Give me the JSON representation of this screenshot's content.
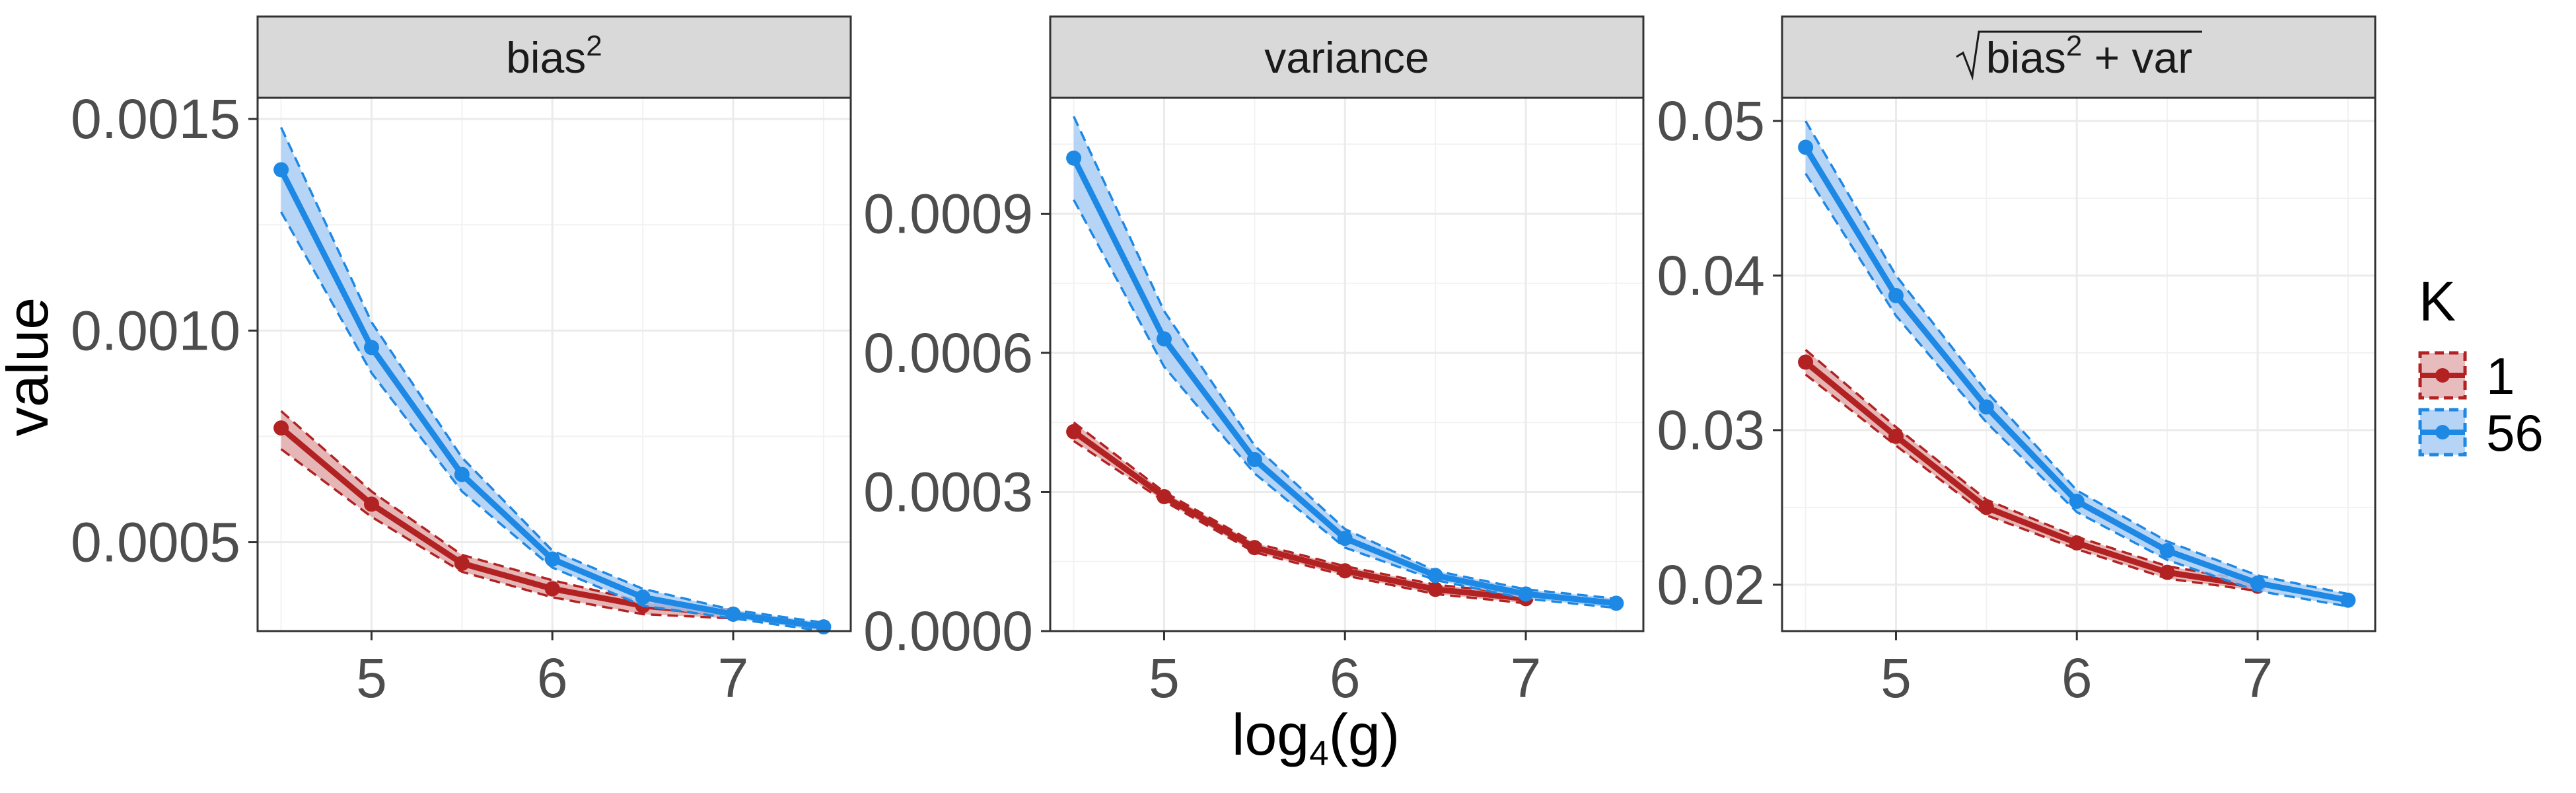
{
  "chart_data": {
    "type": "line",
    "xlabel": {
      "base": "log",
      "sub": "4",
      "rest": "(g)"
    },
    "ylabel": "value",
    "legend": {
      "title": "K",
      "position": "right",
      "entries": [
        "1",
        "56"
      ]
    },
    "colors": {
      "1": "#b22222",
      "56": "#1e88e5",
      "band1": "#d98f8f",
      "band56": "#a9ccf3"
    },
    "grid": true,
    "panels": [
      {
        "strip": {
          "type": "sup",
          "base": "bias",
          "sup": "2"
        },
        "xlim": [
          4.37,
          7.65
        ],
        "ylim": [
          0.00029,
          0.00155
        ],
        "xticks": [
          5,
          6,
          7
        ],
        "yticks": [
          0.0005,
          0.001,
          0.0015
        ],
        "ytick_labels": [
          "0.0005",
          "0.0010",
          "0.0015"
        ],
        "series": [
          {
            "name": "1",
            "x": [
              4.5,
              5,
              5.5,
              6,
              6.5,
              7
            ],
            "y": [
              0.00077,
              0.00059,
              0.00045,
              0.00039,
              0.00035,
              0.00033
            ],
            "lo": [
              0.00072,
              0.00056,
              0.00043,
              0.00037,
              0.00033,
              0.00032
            ],
            "hi": [
              0.00081,
              0.00062,
              0.00047,
              0.00041,
              0.00036,
              0.00034
            ]
          },
          {
            "name": "56",
            "x": [
              4.5,
              5,
              5.5,
              6,
              6.5,
              7,
              7.5
            ],
            "y": [
              0.00138,
              0.00096,
              0.00066,
              0.00046,
              0.00037,
              0.00033,
              0.0003
            ],
            "lo": [
              0.00128,
              0.0009,
              0.00062,
              0.00044,
              0.00035,
              0.00032,
              0.00029
            ],
            "hi": [
              0.00148,
              0.00102,
              0.0007,
              0.00048,
              0.00039,
              0.00034,
              0.00031
            ]
          }
        ]
      },
      {
        "strip": {
          "type": "text",
          "text": "variance"
        },
        "xlim": [
          4.37,
          7.65
        ],
        "ylim": [
          0.0,
          0.00115
        ],
        "xticks": [
          5,
          6,
          7
        ],
        "yticks": [
          0.0,
          0.0003,
          0.0006,
          0.0009
        ],
        "ytick_labels": [
          "0.0000",
          "0.0003",
          "0.0006",
          "0.0009"
        ],
        "series": [
          {
            "name": "1",
            "x": [
              4.5,
              5,
              5.5,
              6,
              6.5,
              7
            ],
            "y": [
              0.00043,
              0.00029,
              0.00018,
              0.00013,
              9e-05,
              7e-05
            ],
            "lo": [
              0.00041,
              0.00028,
              0.00017,
              0.00012,
              8e-05,
              6e-05
            ],
            "hi": [
              0.00045,
              0.0003,
              0.00019,
              0.00014,
              0.0001,
              8e-05
            ]
          },
          {
            "name": "56",
            "x": [
              4.5,
              5,
              5.5,
              6,
              6.5,
              7,
              7.5
            ],
            "y": [
              0.00102,
              0.00063,
              0.00037,
              0.0002,
              0.00012,
              8e-05,
              6e-05
            ],
            "lo": [
              0.00093,
              0.00057,
              0.00034,
              0.00018,
              0.00011,
              7e-05,
              5e-05
            ],
            "hi": [
              0.00111,
              0.00069,
              0.0004,
              0.00022,
              0.00013,
              9e-05,
              7e-05
            ]
          }
        ]
      },
      {
        "strip": {
          "type": "sqrt",
          "base": "bias",
          "sup": "2",
          "rest": "+ var"
        },
        "xlim": [
          4.37,
          7.65
        ],
        "ylim": [
          0.017,
          0.0515
        ],
        "xticks": [
          5,
          6,
          7
        ],
        "yticks": [
          0.02,
          0.03,
          0.04,
          0.05
        ],
        "ytick_labels": [
          "0.02",
          "0.03",
          "0.04",
          "0.05"
        ],
        "series": [
          {
            "name": "1",
            "x": [
              4.5,
              5,
              5.5,
              6,
              6.5,
              7
            ],
            "y": [
              0.0344,
              0.0296,
              0.025,
              0.0227,
              0.0208,
              0.0199
            ],
            "lo": [
              0.0336,
              0.029,
              0.0245,
              0.0223,
              0.0204,
              0.0196
            ],
            "hi": [
              0.0352,
              0.0302,
              0.0255,
              0.0231,
              0.0212,
              0.0202
            ]
          },
          {
            "name": "56",
            "x": [
              4.5,
              5,
              5.5,
              6,
              6.5,
              7,
              7.5
            ],
            "y": [
              0.0483,
              0.0387,
              0.0315,
              0.0254,
              0.0222,
              0.0201,
              0.019
            ],
            "lo": [
              0.0466,
              0.0374,
              0.0305,
              0.0247,
              0.0216,
              0.0196,
              0.0186
            ],
            "hi": [
              0.05,
              0.04,
              0.0325,
              0.0261,
              0.0228,
              0.0206,
              0.0194
            ]
          }
        ]
      }
    ]
  }
}
